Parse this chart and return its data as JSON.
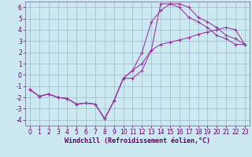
{
  "xlabel": "Windchill (Refroidissement éolien,°C)",
  "bg_color": "#cce8f0",
  "grid_color": "#99bbcc",
  "line_color": "#993399",
  "spine_color": "#666688",
  "tick_color": "#660066",
  "label_color": "#660066",
  "xlim": [
    -0.5,
    23.5
  ],
  "ylim": [
    -4.5,
    6.5
  ],
  "xticks": [
    0,
    1,
    2,
    3,
    4,
    5,
    6,
    7,
    8,
    9,
    10,
    11,
    12,
    13,
    14,
    15,
    16,
    17,
    18,
    19,
    20,
    21,
    22,
    23
  ],
  "yticks": [
    -4,
    -3,
    -2,
    -1,
    0,
    1,
    2,
    3,
    4,
    5,
    6
  ],
  "series1_x": [
    0,
    1,
    2,
    3,
    4,
    5,
    6,
    7,
    8,
    9,
    10,
    11,
    12,
    13,
    14,
    15,
    16,
    17,
    18,
    19,
    20,
    21,
    22,
    23
  ],
  "series1_y": [
    -1.3,
    -1.9,
    -1.7,
    -2.0,
    -2.1,
    -2.6,
    -2.5,
    -2.6,
    -3.9,
    -2.3,
    -0.3,
    -0.3,
    0.4,
    2.2,
    6.3,
    6.3,
    6.0,
    5.1,
    4.7,
    4.2,
    3.5,
    3.2,
    2.7,
    2.7
  ],
  "series2_x": [
    0,
    1,
    2,
    3,
    4,
    5,
    6,
    7,
    8,
    9,
    10,
    11,
    12,
    13,
    14,
    15,
    16,
    17,
    18,
    19,
    20,
    21,
    22,
    23
  ],
  "series2_y": [
    -1.3,
    -1.9,
    -1.7,
    -2.0,
    -2.1,
    -2.6,
    -2.5,
    -2.6,
    -3.9,
    -2.3,
    -0.3,
    0.4,
    1.0,
    2.2,
    2.7,
    2.9,
    3.1,
    3.3,
    3.6,
    3.8,
    4.0,
    4.2,
    4.0,
    2.7
  ],
  "series3_x": [
    0,
    1,
    2,
    3,
    4,
    5,
    6,
    7,
    8,
    9,
    10,
    11,
    12,
    13,
    14,
    15,
    16,
    17,
    18,
    19,
    20,
    21,
    22,
    23
  ],
  "series3_y": [
    -1.3,
    -1.9,
    -1.7,
    -2.0,
    -2.1,
    -2.6,
    -2.5,
    -2.6,
    -3.9,
    -2.3,
    -0.3,
    0.4,
    2.0,
    4.7,
    5.7,
    6.3,
    6.3,
    6.0,
    5.1,
    4.7,
    4.2,
    3.5,
    3.2,
    2.7
  ],
  "tick_fontsize": 5.5,
  "xlabel_fontsize": 6.0,
  "linewidth": 0.75,
  "markersize": 3.5,
  "markeredgewidth": 0.8
}
